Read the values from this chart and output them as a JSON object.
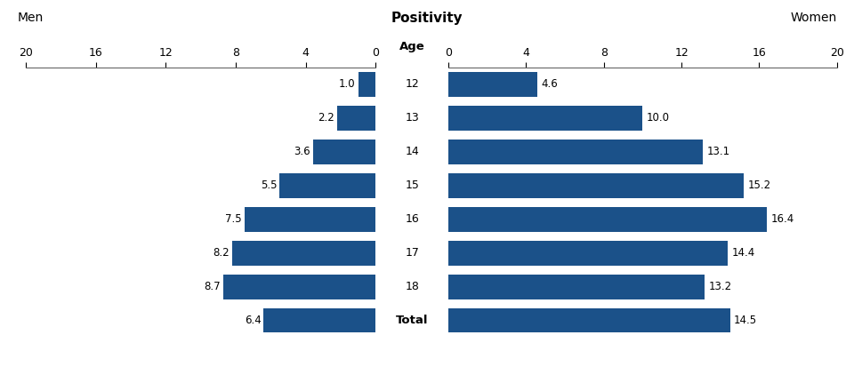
{
  "ages": [
    "12",
    "13",
    "14",
    "15",
    "16",
    "17",
    "18",
    "Total"
  ],
  "men_values": [
    1.0,
    2.2,
    3.6,
    5.5,
    7.5,
    8.2,
    8.7,
    6.4
  ],
  "women_values": [
    4.6,
    10.0,
    13.1,
    15.2,
    16.4,
    14.4,
    13.2,
    14.5
  ],
  "bar_color": "#1B5189",
  "title_left": "Men",
  "title_center": "Positivity",
  "title_right": "Women",
  "age_label": "Age",
  "xticks_men": [
    20,
    16,
    12,
    8,
    4,
    0
  ],
  "xticks_women": [
    0,
    4,
    8,
    12,
    16,
    20
  ],
  "background_color": "#ffffff"
}
